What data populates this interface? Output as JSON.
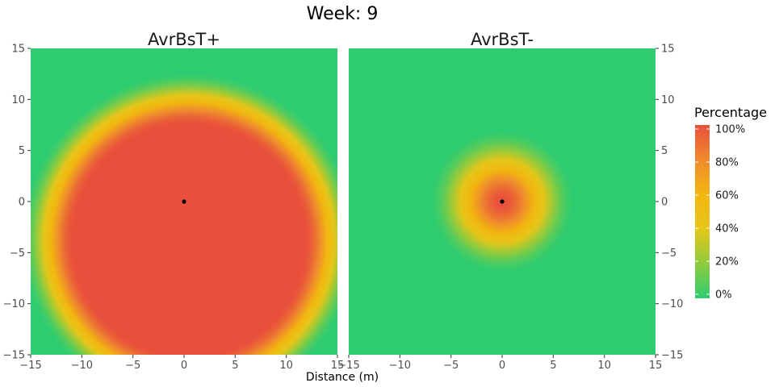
{
  "chart_data": {
    "type": "heatmap",
    "title": "Week: 9",
    "xlabel": "Distance (m)",
    "ylabel": "",
    "xlim": [
      -15,
      15
    ],
    "ylim": [
      -15,
      15
    ],
    "x_ticks": [
      -15,
      -10,
      -5,
      0,
      5,
      10,
      15
    ],
    "y_ticks": [
      15,
      10,
      5,
      0,
      -5,
      -10,
      -15
    ],
    "grid": false,
    "panels": [
      {
        "name": "AvrBsT+",
        "point": {
          "x": 0,
          "y": 0
        },
        "field": {
          "center_x": 0.5,
          "center_y": -3.8,
          "radius_x": 16.5,
          "radius_y": 16.5,
          "plateau": 0.68
        }
      },
      {
        "name": "AvrBsT-",
        "point": {
          "x": 0,
          "y": 0
        },
        "field": {
          "center_x": 0,
          "center_y": 0,
          "radius_x": 7.2,
          "radius_y": 7.2,
          "plateau": 0.0
        }
      }
    ],
    "legend": {
      "title": "Percentage",
      "placement": "right",
      "ticks": [
        "100%",
        "80%",
        "60%",
        "40%",
        "20%",
        "0%"
      ],
      "colors": {
        "0": "#2ECC71",
        "20": "#8FCB3E",
        "40": "#E6C61A",
        "60": "#F2B710",
        "80": "#EF8A2E",
        "100": "#E8503C"
      }
    }
  }
}
